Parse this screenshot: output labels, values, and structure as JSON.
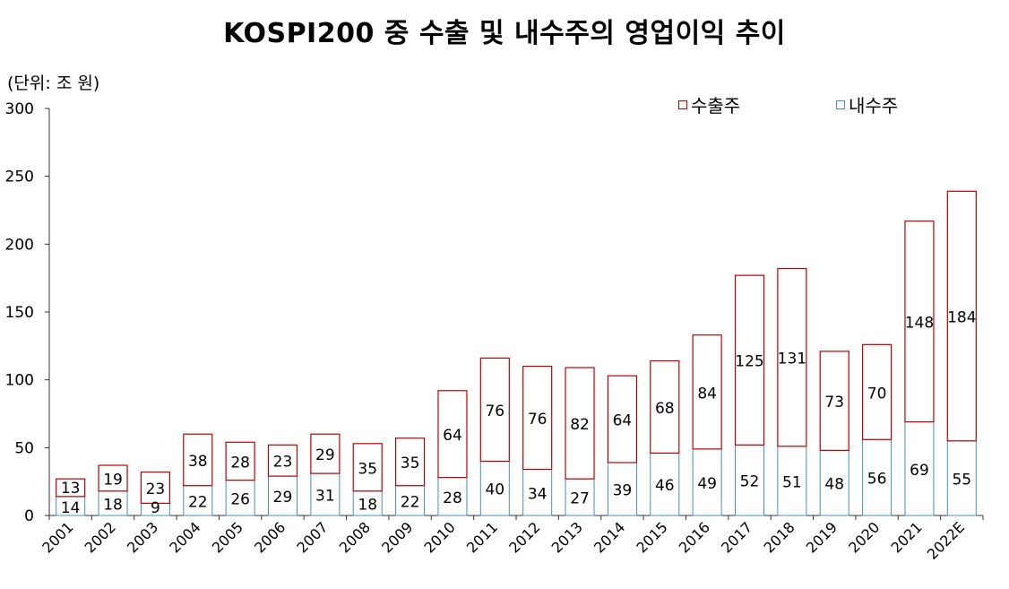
{
  "title": "KOSPI200 중 수출 및 내수주의 영업이익 추이",
  "unit_label": "(단위: 조 원)",
  "legend": {
    "export": "수출주",
    "domestic": "내수주"
  },
  "colors": {
    "export_border": "#c00000",
    "domestic_border": "#4a90b8"
  },
  "chart_data": {
    "type": "bar",
    "stacked": true,
    "categories": [
      "2001",
      "2002",
      "2003",
      "2004",
      "2005",
      "2006",
      "2007",
      "2008",
      "2009",
      "2010",
      "2011",
      "2012",
      "2013",
      "2014",
      "2015",
      "2016",
      "2017",
      "2018",
      "2019",
      "2020",
      "2021",
      "2022E"
    ],
    "series": [
      {
        "name": "내수주",
        "values": [
          14,
          18,
          9,
          22,
          26,
          29,
          31,
          18,
          22,
          28,
          40,
          34,
          27,
          39,
          46,
          49,
          52,
          51,
          48,
          56,
          69,
          55
        ]
      },
      {
        "name": "수출주",
        "values": [
          13,
          19,
          23,
          38,
          28,
          23,
          29,
          35,
          35,
          64,
          76,
          76,
          82,
          64,
          68,
          84,
          125,
          131,
          73,
          70,
          148,
          184
        ]
      }
    ],
    "ylim": [
      0,
      300
    ],
    "yticks": [
      0,
      50,
      100,
      150,
      200,
      250,
      300
    ],
    "legend_position": "top-right",
    "grid": false
  }
}
